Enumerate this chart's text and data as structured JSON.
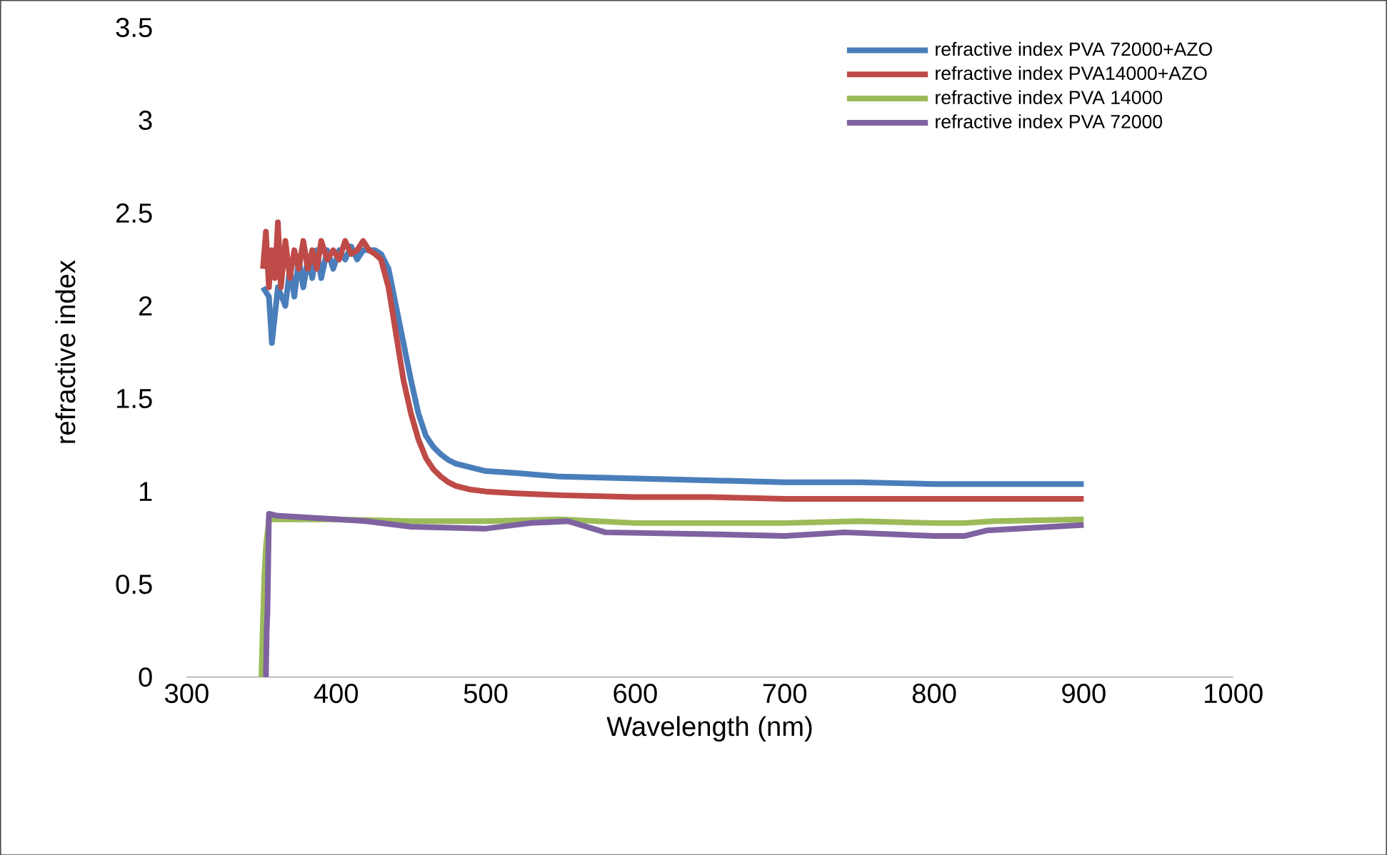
{
  "chart_data": {
    "type": "line",
    "xlabel": "Wavelength (nm)",
    "ylabel": "refractive index",
    "xlim": [
      300,
      1000
    ],
    "ylim": [
      0,
      3.5
    ],
    "xticks": [
      300,
      400,
      500,
      600,
      700,
      800,
      900,
      1000
    ],
    "yticks": [
      0,
      0.5,
      1,
      1.5,
      2,
      2.5,
      3,
      3.5
    ],
    "grid": false,
    "legend": "top right",
    "marker": "none",
    "line_style": "solid",
    "series": [
      {
        "name": "refractive index PVA 72000+AZO",
        "color": "#4a7ebb",
        "x": [
          351,
          353,
          355,
          357,
          359,
          361,
          363,
          366,
          369,
          372,
          375,
          378,
          381,
          384,
          387,
          390,
          394,
          398,
          402,
          406,
          410,
          414,
          418,
          422,
          426,
          430,
          435,
          440,
          445,
          450,
          455,
          460,
          465,
          470,
          475,
          480,
          490,
          500,
          520,
          550,
          600,
          650,
          700,
          750,
          800,
          850,
          900
        ],
        "values": [
          2.1,
          null,
          2.05,
          1.8,
          null,
          2.1,
          null,
          2.0,
          2.2,
          2.05,
          2.25,
          2.1,
          2.25,
          2.15,
          2.3,
          2.15,
          2.3,
          2.2,
          2.3,
          2.25,
          2.32,
          2.25,
          2.3,
          2.3,
          2.3,
          2.28,
          2.2,
          2.0,
          1.8,
          1.6,
          1.42,
          1.3,
          1.24,
          1.2,
          1.17,
          1.15,
          1.13,
          1.11,
          1.1,
          1.08,
          1.07,
          1.06,
          1.05,
          1.05,
          1.04,
          1.04,
          1.04
        ]
      },
      {
        "name": "refractive index PVA14000+AZO",
        "color": "#be4b48",
        "x": [
          351,
          353,
          355,
          357,
          359,
          361,
          363,
          366,
          369,
          372,
          375,
          378,
          381,
          384,
          387,
          390,
          394,
          398,
          402,
          406,
          410,
          414,
          418,
          422,
          426,
          430,
          435,
          440,
          445,
          450,
          455,
          460,
          465,
          470,
          475,
          480,
          490,
          500,
          520,
          550,
          600,
          650,
          700,
          750,
          800,
          850,
          900
        ],
        "values": [
          2.2,
          2.4,
          2.1,
          2.3,
          2.15,
          2.45,
          2.1,
          2.35,
          2.15,
          2.3,
          2.2,
          2.35,
          2.2,
          2.3,
          2.2,
          2.35,
          2.25,
          2.3,
          2.25,
          2.35,
          2.28,
          2.3,
          2.35,
          2.3,
          2.28,
          2.25,
          2.1,
          1.85,
          1.6,
          1.42,
          1.28,
          1.18,
          1.12,
          1.08,
          1.05,
          1.03,
          1.01,
          1.0,
          0.99,
          0.98,
          0.97,
          0.97,
          0.96,
          0.96,
          0.96,
          0.96,
          0.96
        ]
      },
      {
        "name": "refractive index  PVA 14000",
        "color": "#9bbb59",
        "x": [
          350,
          351,
          352,
          353,
          355,
          370,
          400,
          450,
          500,
          550,
          600,
          650,
          700,
          750,
          800,
          820,
          840,
          900
        ],
        "values": [
          0,
          0.3,
          0.55,
          0.7,
          0.85,
          0.85,
          0.85,
          0.84,
          0.84,
          0.85,
          0.83,
          0.83,
          0.83,
          0.84,
          0.83,
          0.83,
          0.84,
          0.85
        ]
      },
      {
        "name": "refractive index PVA 72000",
        "color": "#7f62a0",
        "x": [
          353,
          353.5,
          354,
          354.5,
          355,
          360,
          380,
          420,
          450,
          500,
          530,
          555,
          580,
          650,
          700,
          740,
          800,
          820,
          835,
          900
        ],
        "values": [
          0,
          0.25,
          0.35,
          0.6,
          0.88,
          0.87,
          0.86,
          0.84,
          0.81,
          0.8,
          0.83,
          0.84,
          0.78,
          0.77,
          0.76,
          0.78,
          0.76,
          0.76,
          0.79,
          0.82
        ]
      }
    ]
  }
}
